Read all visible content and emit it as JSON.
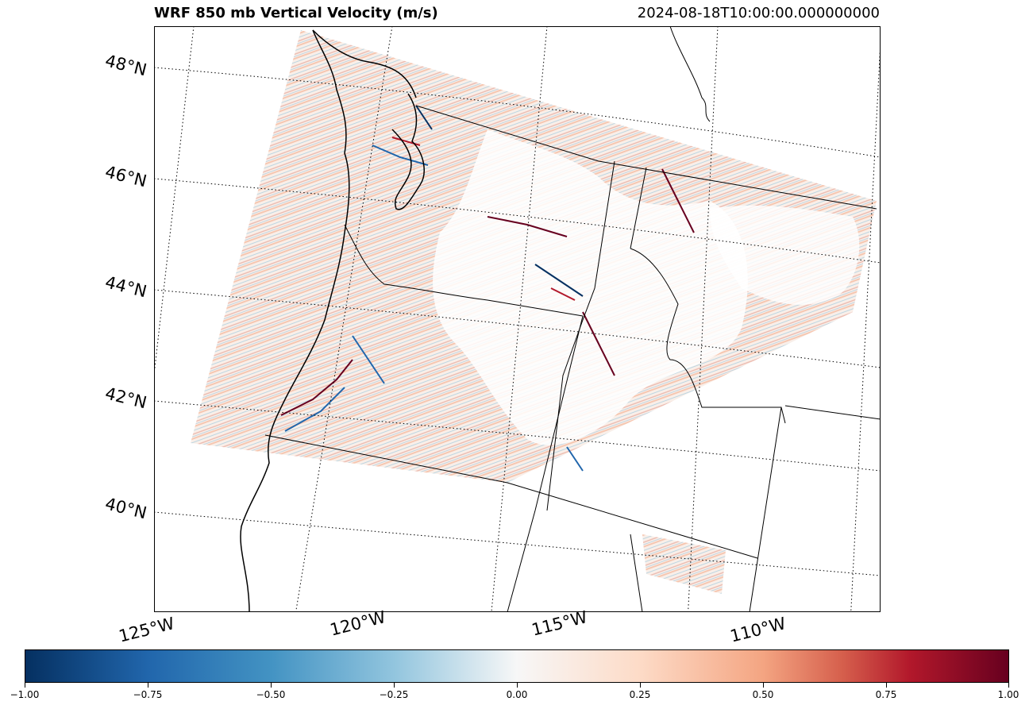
{
  "title": {
    "left": "WRF 850 mb Vertical Velocity (m/s)",
    "right": "2024-08-18T10:00:00.000000000"
  },
  "latitude_labels": [
    "48°N",
    "46°N",
    "44°N",
    "42°N",
    "40°N"
  ],
  "longitude_labels": [
    "125°W",
    "120°W",
    "115°W",
    "110°W"
  ],
  "colorbar": {
    "ticks": [
      "−1.00",
      "−0.75",
      "−0.50",
      "−0.25",
      "0.00",
      "0.25",
      "0.50",
      "0.75",
      "1.00"
    ],
    "min": -1.0,
    "max": 1.0,
    "colormap": "RdBu_r",
    "colors": {
      "low": "#053061",
      "mid": "#f7f7f7",
      "high": "#67001f"
    }
  }
}
